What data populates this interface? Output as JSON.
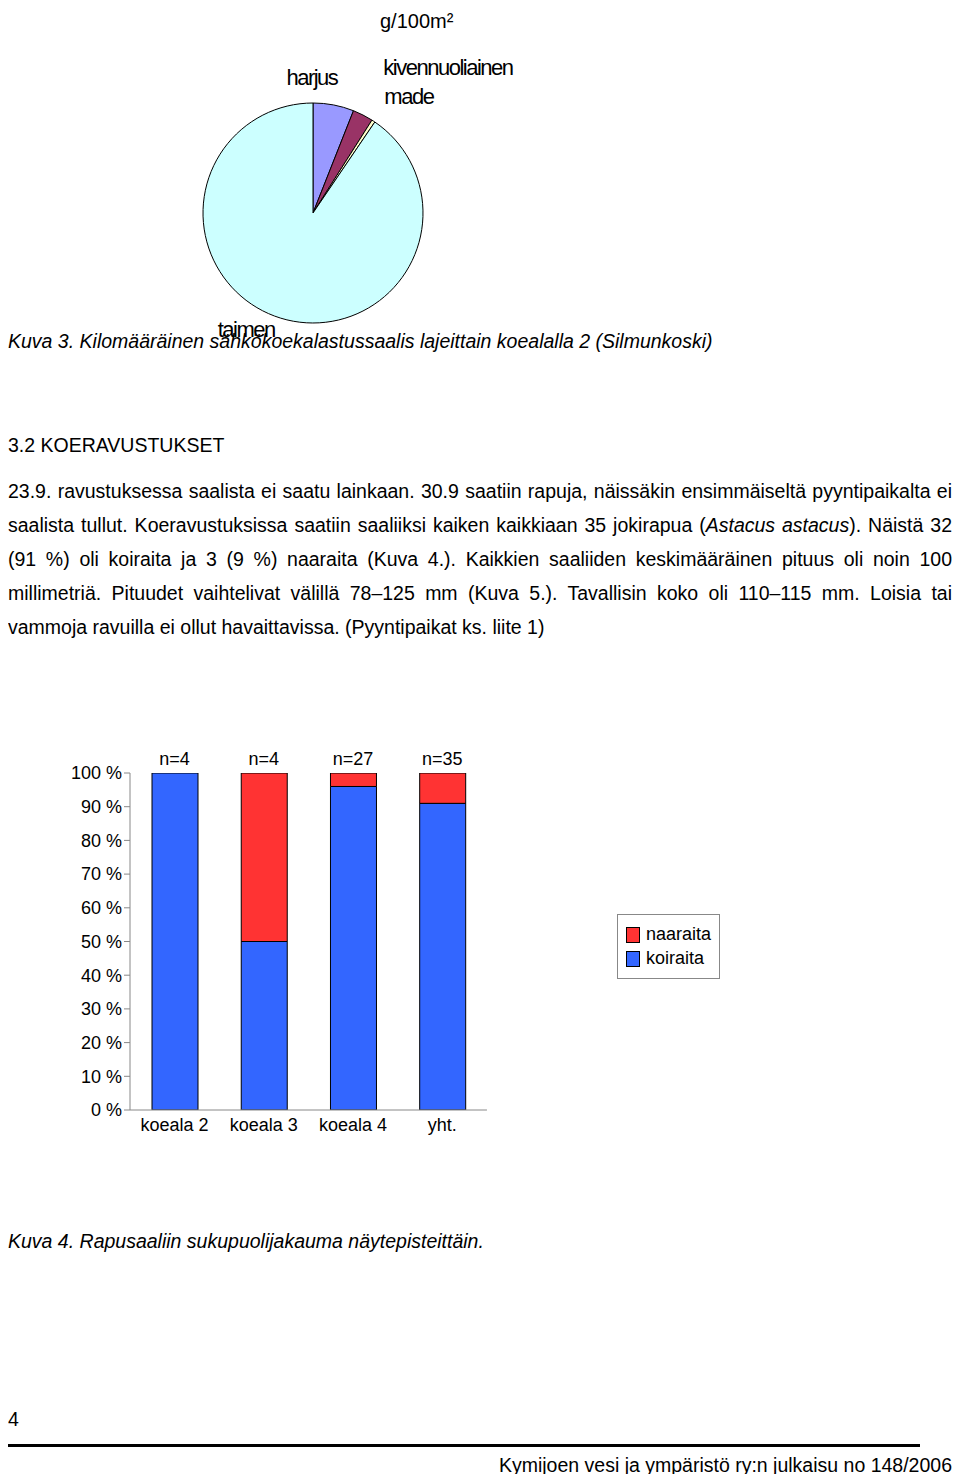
{
  "page": {
    "captions": [
      "Kuva 3. Kilomääräinen sähkökoekalastussaalis lajeittain koealalla 2 (Silmunkoski)",
      "Kuva 4. Rapusaaliin sukupuolijakauma näytepisteittäin."
    ],
    "heading": "3.2 KOERAVUSTUKSET",
    "paragraph": [
      "23.9. ravustuksessa saalista ei saatu lainkaan. 30.9 saatiin rapuja, näissäkin ensimmäiseltä pyyntipaikalta ei saalista tullut. Koeravustuksissa saatiin saaliiksi kaiken kaikkiaan 35 jokirapua (",
      "Astacus astacus",
      "). Näistä 32 (91 %) oli koiraita ja 3 (9 %) naaraita (Kuva 4.). Kaikkien saaliiden keskimääräinen pituus oli noin 100 millimetriä. Pituudet vaihtelivat välillä 78–125 mm (Kuva 5.). Tavallisin koko oli 110–115 mm. Loisia tai vammoja ravuilla ei ollut havaittavissa. (Pyyntipaikat ks. liite 1)"
    ],
    "page_number": "4",
    "footer": "Kymijoen vesi ja ympäristö ry:n julkaisu no 148/2006"
  },
  "chart_data": [
    {
      "type": "pie",
      "title": "g/100m²",
      "categories": [
        "harjus",
        "kivennuoliainen",
        "made",
        "taimen"
      ],
      "values": [
        6,
        3,
        0.5,
        90.5
      ],
      "colors": [
        "#9999ff",
        "#993366",
        "#ffffcc",
        "#ccffff"
      ]
    },
    {
      "type": "bar",
      "stacked": true,
      "categories": [
        "koeala 2",
        "koeala 3",
        "koeala 4",
        "yht."
      ],
      "annotations": [
        "n=4",
        "n=4",
        "n=27",
        "n=35"
      ],
      "series": [
        {
          "name": "koiraita",
          "color": "#3366ff",
          "values": [
            100,
            50,
            96,
            91
          ]
        },
        {
          "name": "naaraita",
          "color": "#ff3333",
          "values": [
            0,
            50,
            4,
            9
          ]
        }
      ],
      "ylim": [
        0,
        100
      ],
      "yticks": [
        {
          "value": 0,
          "label": "0 %"
        },
        {
          "value": 10,
          "label": "10 %"
        },
        {
          "value": 20,
          "label": "20 %"
        },
        {
          "value": 30,
          "label": "30 %"
        },
        {
          "value": 40,
          "label": "40 %"
        },
        {
          "value": 50,
          "label": "50 %"
        },
        {
          "value": 60,
          "label": "60 %"
        },
        {
          "value": 70,
          "label": "70 %"
        },
        {
          "value": 80,
          "label": "80 %"
        },
        {
          "value": 90,
          "label": "90 %"
        },
        {
          "value": 100,
          "label": "100 %"
        }
      ],
      "grid": false,
      "legend": "right"
    }
  ]
}
